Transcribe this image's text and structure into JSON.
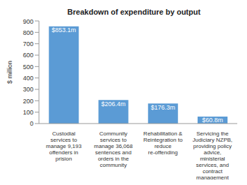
{
  "chart_data": {
    "type": "bar",
    "title": "Breakdown of expenditure by output",
    "y_label": "$ million",
    "categories": [
      "Custodial services to manage 9,193 offenders in prision",
      "Community services to manage 36,068 sentences and orders in the community",
      "Rehabilitation & Reintegration to reduce re-offending",
      "Servicing the Judiciary NZPB, providing policy advice, ministerial services, and contract management"
    ],
    "values": [
      853.1,
      206.4,
      176.3,
      60.8
    ],
    "value_labels": [
      "$853.1m",
      "$206.4m",
      "$176.3m",
      "$60.8m"
    ],
    "color": "#5b9bd5",
    "ylim": [
      0,
      900
    ],
    "yticks": [
      0,
      100,
      200,
      300,
      400,
      500,
      600,
      700,
      800,
      900
    ],
    "grid": false,
    "data_labels": true
  }
}
